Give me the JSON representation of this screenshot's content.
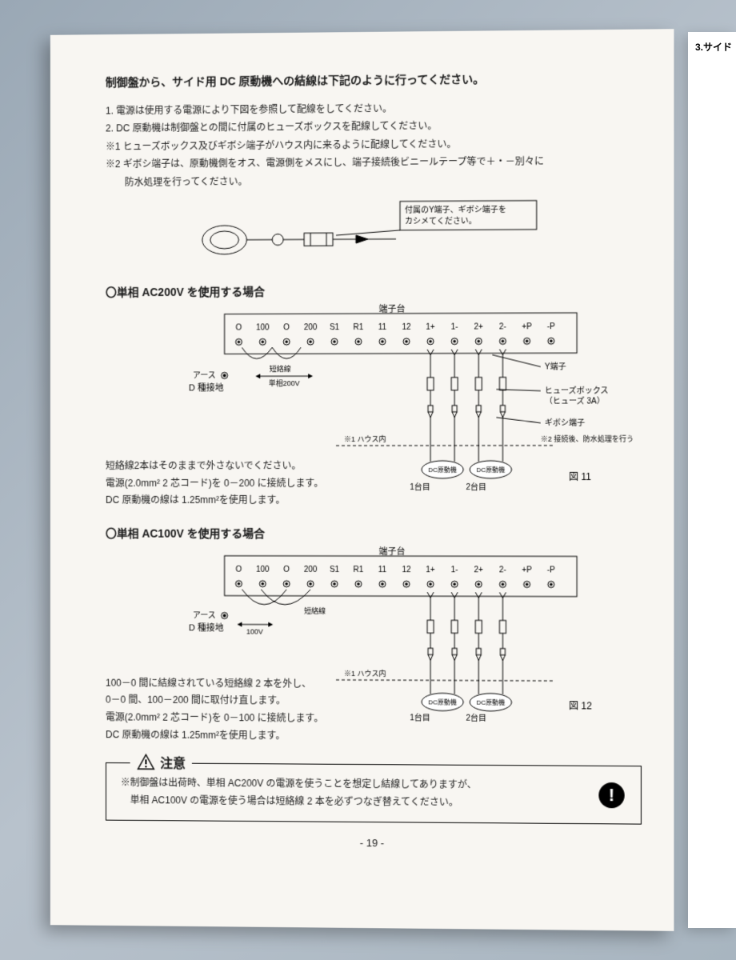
{
  "intro": "制御盤から、サイド用 DC 原動機への結線は下記のように行ってください。",
  "steps": {
    "s1": "1. 電源は使用する電源により下図を参照して配線をしてください。",
    "s2": "2. DC 原動機は制御盤との間に付属のヒューズボックスを配線してください。",
    "s3": "※1 ヒューズボックス及びギボシ端子がハウス内に来るように配線してください。",
    "s4": "※2 ギボシ端子は、原動機側をオス、電源側をメスにし、端子接続後ビニールテープ等で＋・－別々に",
    "s5": "　　防水処理を行ってください。"
  },
  "callout1": {
    "l1": "付属のY端子、ギボシ端子を",
    "l2": "カシメてください。"
  },
  "section200": "〇単相 AC200V を使用する場合",
  "section100": "〇単相 AC100V を使用する場合",
  "terminal": {
    "title": "端子台",
    "labels": [
      "O",
      "100",
      "O",
      "200",
      "S1",
      "R1",
      "11",
      "12",
      "1+",
      "1-",
      "2+",
      "2-",
      "+P",
      "-P"
    ]
  },
  "diag_labels": {
    "earth": "アース",
    "dground": "D 種接地",
    "short": "短絡線",
    "ac200": "単相200V",
    "ac100": "100V",
    "yterm": "Y端子",
    "fusebox1": "ヒューズボックス",
    "fusebox2": "（ヒューズ 3A）",
    "gibo": "ギボシ端子",
    "note2": "※2 接続後、防水処理を行う",
    "house": "※1 ハウス内",
    "dcmotor": "DC原動機",
    "unit1": "1台目",
    "unit2": "2台目",
    "fig11": "図 11",
    "fig12": "図 12"
  },
  "notes200": {
    "l1": "短絡線2本はそのままで外さないでください。",
    "l2": "電源(2.0mm² 2 芯コード)を 0－200 に接続します。",
    "l3": "DC 原動機の線は 1.25mm²を使用します。"
  },
  "notes100": {
    "l1": "100－0 間に結線されている短絡線 2 本を外し、",
    "l2": "0－0 間、100－200 間に取付け直します。",
    "l3": "電源(2.0mm² 2 芯コード)を 0－100 に接続します。",
    "l4": "DC 原動機の線は 1.25mm²を使用します。"
  },
  "caution": {
    "title": "注意",
    "l1": "※制御盤は出荷時、単相 AC200V の電源を使うことを想定し結線してありますが、",
    "l2": "　単相 AC100V の電源を使う場合は短絡線 2 本を必ずつなぎ替えてください。"
  },
  "page_number": "- 19 -",
  "side_text": "3.サイド"
}
